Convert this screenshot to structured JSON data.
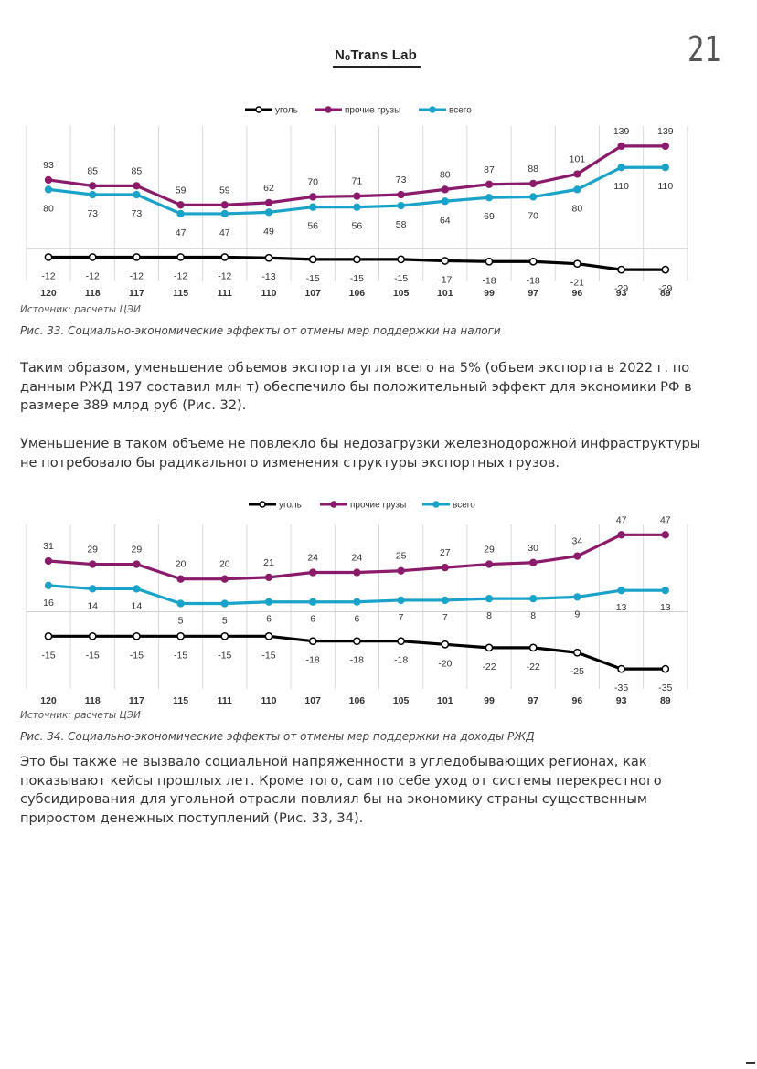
{
  "header": {
    "logo_text": "NₒTrans Lab",
    "page_number": "21"
  },
  "legend": {
    "coal": "уголь",
    "other": "прочие грузы",
    "total": "всего"
  },
  "chart_data": [
    {
      "type": "line",
      "categories": [
        "120",
        "118",
        "117",
        "115",
        "111",
        "110",
        "107",
        "106",
        "105",
        "101",
        "99",
        "97",
        "96",
        "93",
        "89"
      ],
      "series": [
        {
          "name": "уголь",
          "color": "#000000",
          "values": [
            -12,
            -12,
            -12,
            -12,
            -12,
            -13,
            -15,
            -15,
            -15,
            -17,
            -18,
            -18,
            -21,
            -29,
            -29
          ]
        },
        {
          "name": "прочие грузы",
          "color": "#8b1a6b",
          "values": [
            93,
            85,
            85,
            59,
            59,
            62,
            70,
            71,
            73,
            80,
            87,
            88,
            101,
            139,
            139
          ]
        },
        {
          "name": "всего",
          "color": "#1aa3c9",
          "values": [
            80,
            73,
            73,
            47,
            47,
            49,
            56,
            56,
            58,
            64,
            69,
            70,
            80,
            110,
            110
          ]
        }
      ],
      "ylim": [
        -45,
        160
      ]
    },
    {
      "type": "line",
      "categories": [
        "120",
        "118",
        "117",
        "115",
        "111",
        "110",
        "107",
        "106",
        "105",
        "101",
        "99",
        "97",
        "96",
        "93",
        "89"
      ],
      "series": [
        {
          "name": "уголь",
          "color": "#000000",
          "values": [
            -15,
            -15,
            -15,
            -15,
            -15,
            -15,
            -18,
            -18,
            -18,
            -20,
            -22,
            -22,
            -25,
            -35,
            -35
          ]
        },
        {
          "name": "прочие грузы",
          "color": "#8b1a6b",
          "values": [
            31,
            29,
            29,
            20,
            20,
            21,
            24,
            24,
            25,
            27,
            29,
            30,
            34,
            47,
            47
          ]
        },
        {
          "name": "всего",
          "color": "#1aa3c9",
          "values": [
            16,
            14,
            14,
            5,
            5,
            6,
            6,
            6,
            7,
            7,
            8,
            8,
            9,
            13,
            13
          ]
        }
      ],
      "ylim": [
        -50,
        55
      ]
    }
  ],
  "figure1": {
    "source": "Источник: расчеты ЦЭИ",
    "caption": "Рис. 33. Социально-экономические эффекты от отмены мер поддержки на налоги"
  },
  "figure2": {
    "source": "Источник: расчеты ЦЭИ",
    "caption": "Рис. 34. Социально-экономические эффекты от отмены мер поддержки на доходы РЖД"
  },
  "text": {
    "para1": "Таким образом, уменьшение объемов экспорта угля всего на 5% (объем экспорта в 2022 г. по данным РЖД 197 составил млн т) обеспечило бы положительный эффект для экономики РФ в размере 389 млрд руб (Рис. 32).",
    "para2": "Уменьшение в таком объеме не повлекло бы недозагрузки железнодорожной инфраструктуры не потребовало бы радикального изменения структуры экспортных грузов.",
    "para3": "Это бы также не вызвало социальной напряженности в угледобывающих регионах, как показывают кейсы прошлых лет. Кроме того, сам по себе уход от системы перекрестного субсидирования для угольной отрасли повлиял бы на экономику страны существенным приростом денежных поступлений (Рис. 33, 34)."
  }
}
